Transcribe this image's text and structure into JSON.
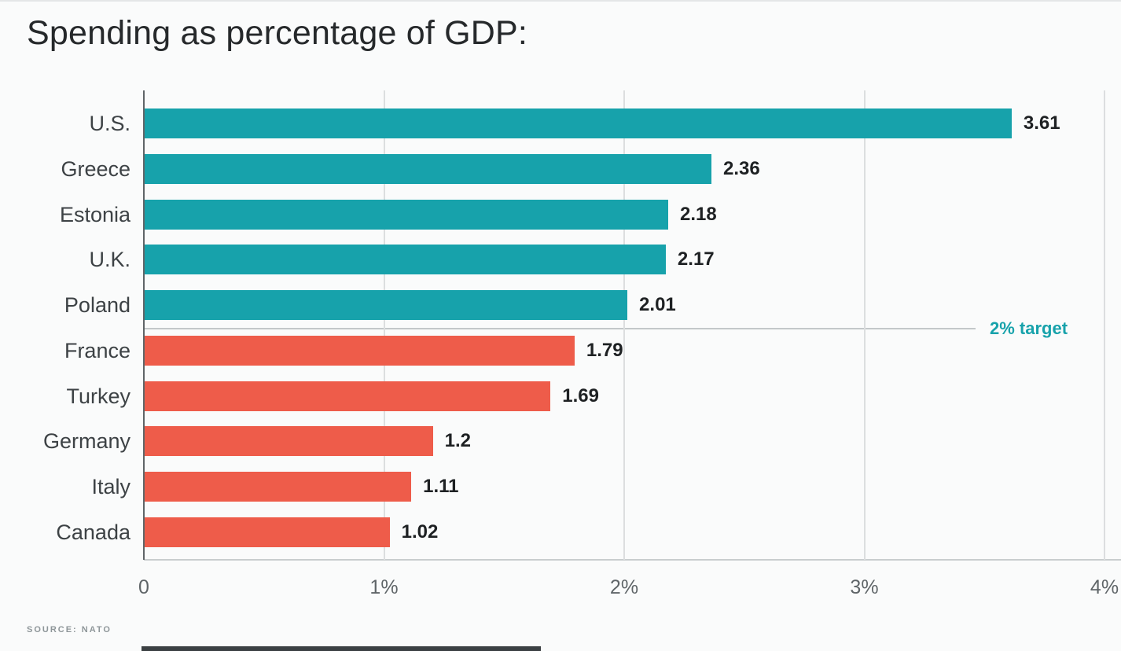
{
  "page": {
    "title": "Spending as percentage of GDP:",
    "source_credit": "SOURCE: NATO"
  },
  "chart_data": {
    "type": "bar",
    "orientation": "horizontal",
    "title": "Spending as percentage of GDP:",
    "xlabel": "",
    "ylabel": "",
    "categories": [
      "U.S.",
      "Greece",
      "Estonia",
      "U.K.",
      "Poland",
      "France",
      "Turkey",
      "Germany",
      "Italy",
      "Canada"
    ],
    "values": [
      3.61,
      2.36,
      2.18,
      2.17,
      2.01,
      1.79,
      1.69,
      1.2,
      1.11,
      1.02
    ],
    "value_labels": [
      "3.61",
      "2.36",
      "2.18",
      "2.17",
      "2.01",
      "1.79",
      "1.69",
      "1.2",
      "1.11",
      "1.02"
    ],
    "xlim": [
      0,
      4
    ],
    "x_ticks": [
      "0",
      "1%",
      "2%",
      "3%",
      "4%"
    ],
    "x_tick_values": [
      0,
      1,
      2,
      3,
      4
    ],
    "grid": true,
    "legend": "none",
    "threshold": 2.0,
    "annotation": {
      "label": "2% target",
      "value": 2.0
    },
    "colors": {
      "above_target": "#17a2ab",
      "below_target": "#ee5c4a",
      "gridline": "#dcdedf",
      "axis": "#5f6568"
    }
  }
}
